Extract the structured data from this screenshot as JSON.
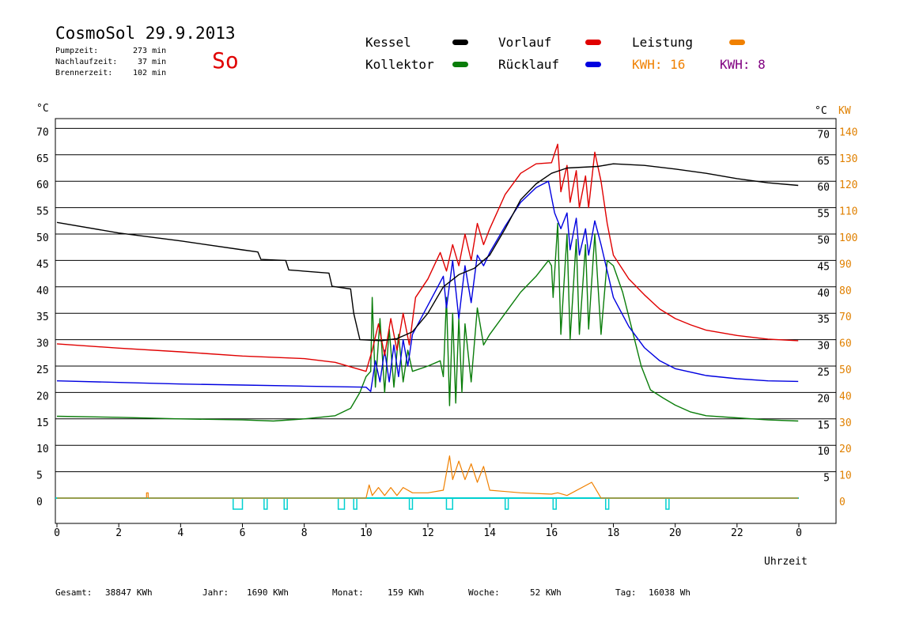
{
  "header": {
    "title": "CosmoSol 29.9.2013",
    "day": "So",
    "pump_label": "Pumpzeit:",
    "pump_value": "273 min",
    "nachlauf_label": "Nachlaufzeit:",
    "nachlauf_value": "37 min",
    "brenner_label": "Brennerzeit:",
    "brenner_value": "102 min"
  },
  "legend": {
    "kessel": "Kessel",
    "kollektor": "Kollektor",
    "vorlauf": "Vorlauf",
    "ruecklauf": "Rücklauf",
    "leistung": "Leistung",
    "kwh1": "KWH: 16",
    "kwh2": "KWH: 8"
  },
  "colors": {
    "kessel": "#000000",
    "kollektor": "#0a7d0a",
    "vorlauf": "#e00000",
    "ruecklauf": "#0000e0",
    "leistung": "#f08000",
    "kwh2": "#800080",
    "pump": "#00d0d0",
    "axis_right": "#e08000"
  },
  "footer": {
    "gesamt_label": "Gesamt:",
    "gesamt_value": "38847 KWh",
    "jahr_label": "Jahr:",
    "jahr_value": "1690 KWh",
    "monat_label": "Monat:",
    "monat_value": "159 KWh",
    "woche_label": "Woche:",
    "woche_value": "52 KWh",
    "tag_label": "Tag:",
    "tag_value": "16038 Wh"
  },
  "chart_data": {
    "type": "line",
    "xlabel": "Uhrzeit",
    "ylabel_left": "°C",
    "ylabel_right_c": "°C",
    "ylabel_right_kw": "KW",
    "xlim": [
      0,
      24
    ],
    "ylim": [
      -2,
      75
    ],
    "x_ticks": [
      "0",
      "2",
      "4",
      "6",
      "8",
      "10",
      "12",
      "14",
      "16",
      "18",
      "20",
      "22",
      "0"
    ],
    "y_ticks_left": [
      0,
      5,
      10,
      15,
      20,
      25,
      30,
      35,
      40,
      45,
      50,
      55,
      60,
      65,
      70
    ],
    "y_ticks_right_c": [
      5,
      10,
      15,
      20,
      25,
      30,
      35,
      40,
      45,
      50,
      55,
      60,
      65,
      70
    ],
    "y_ticks_right_kw": [
      0,
      10,
      20,
      30,
      40,
      50,
      60,
      70,
      80,
      90,
      100,
      110,
      120,
      130,
      140
    ],
    "grid": "horizontal",
    "series": [
      {
        "name": "Kessel",
        "key": "kessel",
        "points": [
          [
            0,
            52.2
          ],
          [
            2,
            50.2
          ],
          [
            4,
            48.7
          ],
          [
            6,
            47.0
          ],
          [
            6.5,
            46.6
          ],
          [
            6.6,
            45.2
          ],
          [
            7.4,
            45.0
          ],
          [
            7.5,
            43.2
          ],
          [
            8.8,
            42.6
          ],
          [
            8.9,
            40.1
          ],
          [
            9.5,
            39.6
          ],
          [
            9.6,
            35.0
          ],
          [
            9.8,
            30.0
          ],
          [
            10.5,
            29.8
          ],
          [
            11.0,
            30.2
          ],
          [
            11.5,
            31.5
          ],
          [
            12.0,
            35.0
          ],
          [
            12.5,
            40.0
          ],
          [
            13.0,
            42.3
          ],
          [
            13.5,
            43.5
          ],
          [
            14.0,
            46.0
          ],
          [
            14.5,
            51.0
          ],
          [
            15.0,
            56.5
          ],
          [
            15.5,
            59.5
          ],
          [
            16.0,
            61.5
          ],
          [
            16.5,
            62.5
          ],
          [
            17.5,
            62.8
          ],
          [
            18.0,
            63.3
          ],
          [
            19.0,
            63.0
          ],
          [
            20.0,
            62.3
          ],
          [
            21.0,
            61.5
          ],
          [
            22.0,
            60.5
          ],
          [
            23.0,
            59.7
          ],
          [
            23.98,
            59.2
          ]
        ]
      },
      {
        "name": "Vorlauf",
        "key": "vorlauf",
        "points": [
          [
            0,
            29.2
          ],
          [
            2,
            28.4
          ],
          [
            4,
            27.7
          ],
          [
            6,
            26.9
          ],
          [
            8,
            26.4
          ],
          [
            9,
            25.7
          ],
          [
            10,
            24.0
          ],
          [
            10.2,
            28
          ],
          [
            10.4,
            33
          ],
          [
            10.6,
            27
          ],
          [
            10.8,
            34
          ],
          [
            11.0,
            28
          ],
          [
            11.2,
            35
          ],
          [
            11.4,
            29
          ],
          [
            11.6,
            38
          ],
          [
            12.0,
            41.5
          ],
          [
            12.4,
            46.5
          ],
          [
            12.6,
            43
          ],
          [
            12.8,
            48
          ],
          [
            13.0,
            44
          ],
          [
            13.2,
            50
          ],
          [
            13.4,
            45
          ],
          [
            13.6,
            52
          ],
          [
            13.8,
            48
          ],
          [
            14.0,
            51
          ],
          [
            14.5,
            57.5
          ],
          [
            15.0,
            61.5
          ],
          [
            15.5,
            63.3
          ],
          [
            16.0,
            63.5
          ],
          [
            16.2,
            67
          ],
          [
            16.3,
            58
          ],
          [
            16.5,
            63
          ],
          [
            16.6,
            56
          ],
          [
            16.8,
            62
          ],
          [
            16.9,
            55
          ],
          [
            17.1,
            61
          ],
          [
            17.2,
            55
          ],
          [
            17.4,
            65.5
          ],
          [
            17.6,
            60
          ],
          [
            17.8,
            52
          ],
          [
            18.0,
            46
          ],
          [
            18.5,
            41.5
          ],
          [
            19.0,
            38.5
          ],
          [
            19.5,
            35.8
          ],
          [
            20.0,
            34.0
          ],
          [
            20.5,
            32.8
          ],
          [
            21.0,
            31.8
          ],
          [
            22.0,
            30.8
          ],
          [
            23.0,
            30.1
          ],
          [
            23.98,
            29.8
          ]
        ]
      },
      {
        "name": "Rücklauf",
        "key": "ruecklauf",
        "points": [
          [
            0,
            22.2
          ],
          [
            2,
            21.9
          ],
          [
            4,
            21.6
          ],
          [
            6,
            21.4
          ],
          [
            8,
            21.2
          ],
          [
            10,
            21.0
          ],
          [
            10.15,
            20.2
          ],
          [
            10.3,
            26
          ],
          [
            10.45,
            22
          ],
          [
            10.6,
            28
          ],
          [
            10.75,
            22
          ],
          [
            10.9,
            29
          ],
          [
            11.05,
            23
          ],
          [
            11.2,
            30
          ],
          [
            11.35,
            25
          ],
          [
            11.5,
            31
          ],
          [
            12.0,
            36.5
          ],
          [
            12.5,
            42
          ],
          [
            12.6,
            36
          ],
          [
            12.8,
            45
          ],
          [
            13.0,
            34
          ],
          [
            13.2,
            44
          ],
          [
            13.4,
            37
          ],
          [
            13.6,
            46
          ],
          [
            13.8,
            44
          ],
          [
            14.0,
            46.5
          ],
          [
            14.5,
            51.5
          ],
          [
            15.0,
            56.0
          ],
          [
            15.5,
            58.8
          ],
          [
            15.9,
            60
          ],
          [
            16.1,
            54
          ],
          [
            16.3,
            51
          ],
          [
            16.5,
            54
          ],
          [
            16.6,
            47
          ],
          [
            16.8,
            53
          ],
          [
            16.9,
            46
          ],
          [
            17.1,
            51
          ],
          [
            17.2,
            46
          ],
          [
            17.4,
            52.5
          ],
          [
            17.6,
            48
          ],
          [
            17.8,
            43
          ],
          [
            18.0,
            38
          ],
          [
            18.5,
            32.5
          ],
          [
            19.0,
            28.5
          ],
          [
            19.5,
            26.0
          ],
          [
            20.0,
            24.5
          ],
          [
            21.0,
            23.2
          ],
          [
            22.0,
            22.6
          ],
          [
            23.0,
            22.2
          ],
          [
            23.98,
            22.1
          ]
        ]
      },
      {
        "name": "Kollektor",
        "key": "kollektor",
        "points": [
          [
            0,
            15.5
          ],
          [
            2,
            15.3
          ],
          [
            4,
            15.0
          ],
          [
            6,
            14.8
          ],
          [
            7,
            14.6
          ],
          [
            8,
            15.0
          ],
          [
            9,
            15.6
          ],
          [
            9.5,
            17
          ],
          [
            9.8,
            20
          ],
          [
            10.0,
            23
          ],
          [
            10.15,
            24
          ],
          [
            10.2,
            38
          ],
          [
            10.3,
            21
          ],
          [
            10.45,
            34
          ],
          [
            10.6,
            20
          ],
          [
            10.75,
            32
          ],
          [
            10.9,
            21
          ],
          [
            11.05,
            31
          ],
          [
            11.2,
            22
          ],
          [
            11.35,
            28
          ],
          [
            11.5,
            24
          ],
          [
            12.0,
            25
          ],
          [
            12.4,
            26
          ],
          [
            12.5,
            23
          ],
          [
            12.6,
            38
          ],
          [
            12.7,
            17.5
          ],
          [
            12.8,
            35
          ],
          [
            12.9,
            18
          ],
          [
            13.0,
            34
          ],
          [
            13.1,
            20
          ],
          [
            13.2,
            33
          ],
          [
            13.4,
            22
          ],
          [
            13.6,
            36
          ],
          [
            13.8,
            29
          ],
          [
            14.0,
            31
          ],
          [
            14.5,
            35
          ],
          [
            15.0,
            39
          ],
          [
            15.5,
            42
          ],
          [
            15.9,
            45
          ],
          [
            16.0,
            44
          ],
          [
            16.05,
            38
          ],
          [
            16.2,
            52
          ],
          [
            16.3,
            31
          ],
          [
            16.5,
            50
          ],
          [
            16.6,
            30
          ],
          [
            16.8,
            49
          ],
          [
            16.9,
            31
          ],
          [
            17.1,
            48
          ],
          [
            17.2,
            32
          ],
          [
            17.4,
            50
          ],
          [
            17.6,
            31
          ],
          [
            17.8,
            45
          ],
          [
            18.0,
            44
          ],
          [
            18.3,
            39
          ],
          [
            18.6,
            32
          ],
          [
            18.9,
            25
          ],
          [
            19.2,
            20.5
          ],
          [
            19.6,
            19
          ],
          [
            20.0,
            17.6
          ],
          [
            20.5,
            16.3
          ],
          [
            21.0,
            15.6
          ],
          [
            22.0,
            15.2
          ],
          [
            23.0,
            14.8
          ],
          [
            23.98,
            14.6
          ]
        ]
      },
      {
        "name": "Leistung",
        "key": "leistung",
        "unit": "KW",
        "points": [
          [
            0,
            0
          ],
          [
            2.9,
            0
          ],
          [
            2.9,
            2
          ],
          [
            2.95,
            2
          ],
          [
            2.95,
            0
          ],
          [
            10.0,
            0
          ],
          [
            10.1,
            5
          ],
          [
            10.2,
            1
          ],
          [
            10.4,
            4
          ],
          [
            10.6,
            1
          ],
          [
            10.8,
            4
          ],
          [
            11.0,
            1
          ],
          [
            11.2,
            4
          ],
          [
            11.5,
            2
          ],
          [
            12.0,
            2
          ],
          [
            12.5,
            3
          ],
          [
            12.7,
            16
          ],
          [
            12.8,
            7
          ],
          [
            13.0,
            14
          ],
          [
            13.2,
            7
          ],
          [
            13.4,
            13
          ],
          [
            13.6,
            6
          ],
          [
            13.8,
            12
          ],
          [
            14.0,
            3
          ],
          [
            15.0,
            2
          ],
          [
            16.0,
            1.5
          ],
          [
            16.2,
            2
          ],
          [
            16.5,
            1
          ],
          [
            17.3,
            6
          ],
          [
            17.5,
            2
          ],
          [
            17.6,
            0
          ],
          [
            23.98,
            0
          ]
        ]
      }
    ],
    "pump": {
      "name": "Pumpe",
      "on_intervals": [
        [
          5.7,
          6.0
        ],
        [
          6.7,
          6.8
        ],
        [
          7.35,
          7.45
        ],
        [
          9.1,
          9.3
        ],
        [
          9.6,
          9.7
        ],
        [
          11.4,
          11.5
        ],
        [
          12.6,
          12.8
        ],
        [
          14.5,
          14.6
        ],
        [
          16.05,
          16.15
        ],
        [
          17.75,
          17.85
        ],
        [
          19.7,
          19.8
        ]
      ]
    }
  }
}
